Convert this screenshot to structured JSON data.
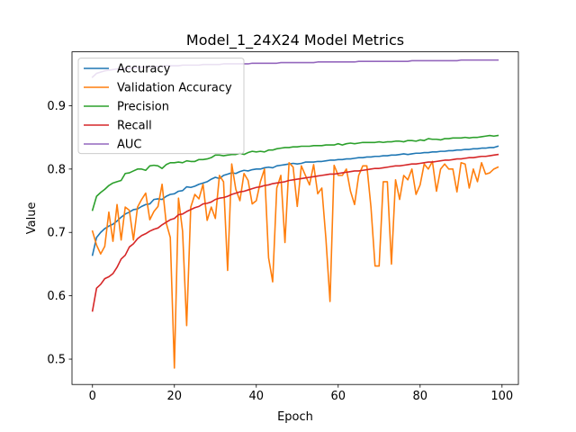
{
  "chart_data": {
    "type": "line",
    "title": "Model_1_24X24 Model Metrics",
    "xlabel": "Epoch",
    "ylabel": "Value",
    "xlim": [
      -5,
      104
    ],
    "ylim": [
      0.46,
      0.985
    ],
    "x_ticks": [
      0,
      20,
      40,
      60,
      80,
      100
    ],
    "y_ticks": [
      0.5,
      0.6,
      0.7,
      0.8,
      0.9
    ],
    "legend": "top-left",
    "grid": false,
    "series": [
      {
        "name": "Accuracy",
        "color": "#1f77b4",
        "values": [
          0.664,
          0.692,
          0.7,
          0.706,
          0.71,
          0.713,
          0.718,
          0.724,
          0.729,
          0.732,
          0.736,
          0.737,
          0.741,
          0.744,
          0.745,
          0.752,
          0.753,
          0.752,
          0.757,
          0.76,
          0.761,
          0.765,
          0.766,
          0.772,
          0.771,
          0.773,
          0.776,
          0.778,
          0.78,
          0.784,
          0.787,
          0.785,
          0.79,
          0.792,
          0.794,
          0.793,
          0.796,
          0.798,
          0.797,
          0.799,
          0.8,
          0.8,
          0.802,
          0.803,
          0.802,
          0.805,
          0.806,
          0.807,
          0.808,
          0.809,
          0.808,
          0.809,
          0.811,
          0.811,
          0.811,
          0.812,
          0.812,
          0.813,
          0.814,
          0.814,
          0.815,
          0.815,
          0.816,
          0.816,
          0.817,
          0.818,
          0.818,
          0.819,
          0.819,
          0.82,
          0.82,
          0.821,
          0.821,
          0.822,
          0.822,
          0.823,
          0.824,
          0.823,
          0.824,
          0.825,
          0.825,
          0.826,
          0.826,
          0.827,
          0.827,
          0.828,
          0.828,
          0.829,
          0.829,
          0.83,
          0.83,
          0.831,
          0.831,
          0.832,
          0.832,
          0.833,
          0.833,
          0.834,
          0.834,
          0.836
        ]
      },
      {
        "name": "Validation Accuracy",
        "color": "#ff7f0e",
        "values": [
          0.702,
          0.68,
          0.666,
          0.678,
          0.732,
          0.686,
          0.744,
          0.688,
          0.74,
          0.735,
          0.688,
          0.74,
          0.752,
          0.762,
          0.72,
          0.733,
          0.741,
          0.776,
          0.715,
          0.692,
          0.486,
          0.754,
          0.702,
          0.553,
          0.74,
          0.76,
          0.753,
          0.776,
          0.719,
          0.74,
          0.722,
          0.79,
          0.78,
          0.64,
          0.808,
          0.768,
          0.75,
          0.793,
          0.782,
          0.745,
          0.75,
          0.78,
          0.8,
          0.66,
          0.622,
          0.77,
          0.79,
          0.684,
          0.81,
          0.803,
          0.741,
          0.805,
          0.79,
          0.775,
          0.807,
          0.761,
          0.77,
          0.69,
          0.591,
          0.806,
          0.79,
          0.79,
          0.8,
          0.765,
          0.744,
          0.79,
          0.805,
          0.805,
          0.74,
          0.647,
          0.647,
          0.78,
          0.78,
          0.65,
          0.783,
          0.752,
          0.79,
          0.783,
          0.8,
          0.76,
          0.775,
          0.808,
          0.8,
          0.812,
          0.765,
          0.8,
          0.808,
          0.8,
          0.8,
          0.764,
          0.81,
          0.808,
          0.77,
          0.8,
          0.78,
          0.81,
          0.792,
          0.794,
          0.8,
          0.803
        ]
      },
      {
        "name": "Precision",
        "color": "#2ca02c",
        "values": [
          0.735,
          0.757,
          0.763,
          0.768,
          0.774,
          0.778,
          0.78,
          0.782,
          0.793,
          0.794,
          0.797,
          0.8,
          0.8,
          0.798,
          0.805,
          0.806,
          0.805,
          0.801,
          0.807,
          0.81,
          0.81,
          0.811,
          0.81,
          0.813,
          0.812,
          0.812,
          0.815,
          0.815,
          0.816,
          0.818,
          0.822,
          0.822,
          0.821,
          0.822,
          0.823,
          0.823,
          0.825,
          0.823,
          0.826,
          0.828,
          0.827,
          0.828,
          0.827,
          0.83,
          0.83,
          0.832,
          0.833,
          0.834,
          0.834,
          0.835,
          0.835,
          0.836,
          0.836,
          0.836,
          0.837,
          0.837,
          0.837,
          0.838,
          0.838,
          0.838,
          0.84,
          0.838,
          0.84,
          0.841,
          0.84,
          0.841,
          0.842,
          0.842,
          0.842,
          0.842,
          0.843,
          0.842,
          0.843,
          0.843,
          0.844,
          0.844,
          0.843,
          0.845,
          0.845,
          0.844,
          0.846,
          0.845,
          0.848,
          0.847,
          0.847,
          0.846,
          0.848,
          0.848,
          0.849,
          0.849,
          0.849,
          0.85,
          0.849,
          0.85,
          0.85,
          0.851,
          0.852,
          0.853,
          0.852,
          0.853
        ]
      },
      {
        "name": "Recall",
        "color": "#d62728",
        "values": [
          0.576,
          0.612,
          0.618,
          0.627,
          0.63,
          0.635,
          0.645,
          0.658,
          0.664,
          0.677,
          0.682,
          0.69,
          0.695,
          0.698,
          0.702,
          0.705,
          0.707,
          0.712,
          0.716,
          0.72,
          0.722,
          0.728,
          0.729,
          0.733,
          0.736,
          0.739,
          0.741,
          0.745,
          0.746,
          0.748,
          0.752,
          0.754,
          0.755,
          0.757,
          0.76,
          0.762,
          0.764,
          0.765,
          0.767,
          0.769,
          0.771,
          0.772,
          0.774,
          0.775,
          0.777,
          0.778,
          0.779,
          0.78,
          0.782,
          0.783,
          0.784,
          0.785,
          0.786,
          0.787,
          0.788,
          0.789,
          0.79,
          0.791,
          0.792,
          0.792,
          0.793,
          0.794,
          0.795,
          0.796,
          0.797,
          0.797,
          0.798,
          0.799,
          0.8,
          0.801,
          0.801,
          0.802,
          0.803,
          0.804,
          0.805,
          0.805,
          0.806,
          0.807,
          0.808,
          0.808,
          0.809,
          0.81,
          0.811,
          0.811,
          0.812,
          0.813,
          0.814,
          0.814,
          0.815,
          0.816,
          0.816,
          0.817,
          0.818,
          0.818,
          0.819,
          0.82,
          0.82,
          0.821,
          0.822,
          0.823
        ]
      },
      {
        "name": "AUC",
        "color": "#9467bd",
        "values": [
          0.945,
          0.951,
          0.953,
          0.955,
          0.956,
          0.957,
          0.958,
          0.958,
          0.959,
          0.959,
          0.96,
          0.96,
          0.961,
          0.961,
          0.961,
          0.962,
          0.962,
          0.962,
          0.963,
          0.963,
          0.963,
          0.963,
          0.964,
          0.964,
          0.964,
          0.964,
          0.964,
          0.965,
          0.965,
          0.965,
          0.965,
          0.965,
          0.966,
          0.966,
          0.966,
          0.966,
          0.966,
          0.966,
          0.966,
          0.967,
          0.967,
          0.967,
          0.967,
          0.967,
          0.967,
          0.967,
          0.968,
          0.968,
          0.968,
          0.968,
          0.968,
          0.968,
          0.968,
          0.968,
          0.968,
          0.969,
          0.969,
          0.969,
          0.969,
          0.969,
          0.969,
          0.969,
          0.969,
          0.969,
          0.969,
          0.97,
          0.97,
          0.97,
          0.97,
          0.97,
          0.97,
          0.97,
          0.97,
          0.97,
          0.97,
          0.97,
          0.97,
          0.97,
          0.971,
          0.971,
          0.971,
          0.971,
          0.971,
          0.971,
          0.971,
          0.971,
          0.971,
          0.971,
          0.971,
          0.971,
          0.972,
          0.972,
          0.972,
          0.972,
          0.972,
          0.972,
          0.972,
          0.972,
          0.972,
          0.972
        ]
      }
    ]
  }
}
